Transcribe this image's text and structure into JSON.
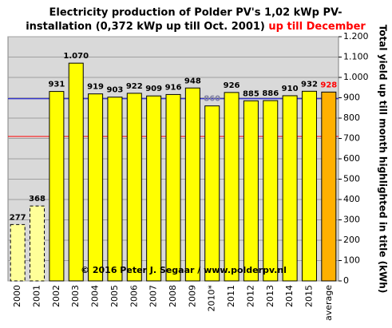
{
  "chart_data": {
    "type": "bar",
    "title": "Electricity production  of Polder PV's 1,02 kWp PV-",
    "title_line2": "installation  (0,372 kWp up till Oct. 2001)",
    "title_highlight": "up till December",
    "title_highlight_color": "#ff0000",
    "y_axis_title": "Total yield up till month highlighted in title (kWh)",
    "watermark": "© 2016 Peter J. Segaar / www.polderpv.nl",
    "categories": [
      "2000",
      "2001",
      "2002",
      "2003",
      "2004",
      "2005",
      "2006",
      "2007",
      "2008",
      "2009",
      "2010*",
      "2011",
      "2012",
      "2013",
      "2014",
      "2015",
      "average"
    ],
    "values": [
      277,
      368,
      931,
      1070,
      919,
      903,
      922,
      909,
      916,
      948,
      860,
      926,
      885,
      886,
      910,
      932,
      928
    ],
    "value_labels": [
      "277",
      "368",
      "931",
      "1.070",
      "919",
      "903",
      "922",
      "909",
      "916",
      "948",
      "860",
      "926",
      "885",
      "886",
      "910",
      "932",
      "928"
    ],
    "colors": [
      "#ffff99",
      "#ffff99",
      "#ffff00",
      "#ffff00",
      "#ffff00",
      "#ffff00",
      "#ffff00",
      "#ffff00",
      "#ffff00",
      "#ffff00",
      "#ffff00",
      "#ffff00",
      "#ffff00",
      "#ffff00",
      "#ffff00",
      "#ffff00",
      "#ffb000"
    ],
    "dashed": [
      true,
      true,
      false,
      false,
      false,
      false,
      false,
      false,
      false,
      false,
      false,
      false,
      false,
      false,
      false,
      false,
      false
    ],
    "label_colors": [
      "#000000",
      "#000000",
      "#000000",
      "#000000",
      "#000000",
      "#000000",
      "#000000",
      "#000000",
      "#000000",
      "#000000",
      "#8080a0",
      "#000000",
      "#000000",
      "#000000",
      "#000000",
      "#000000",
      "#ff0000"
    ],
    "reference_lines": [
      {
        "value": 895,
        "color": "#0000cc"
      },
      {
        "value": 710,
        "color": "#ff0000"
      }
    ],
    "ylim": [
      0,
      1200
    ],
    "yticks": [
      0,
      100,
      200,
      300,
      400,
      500,
      600,
      700,
      800,
      900,
      {
        "value": 1000,
        "label": "1.000"
      },
      {
        "value": 1100,
        "label": "1.100"
      },
      {
        "value": 1200,
        "label": "1.200"
      }
    ],
    "grid": true
  }
}
